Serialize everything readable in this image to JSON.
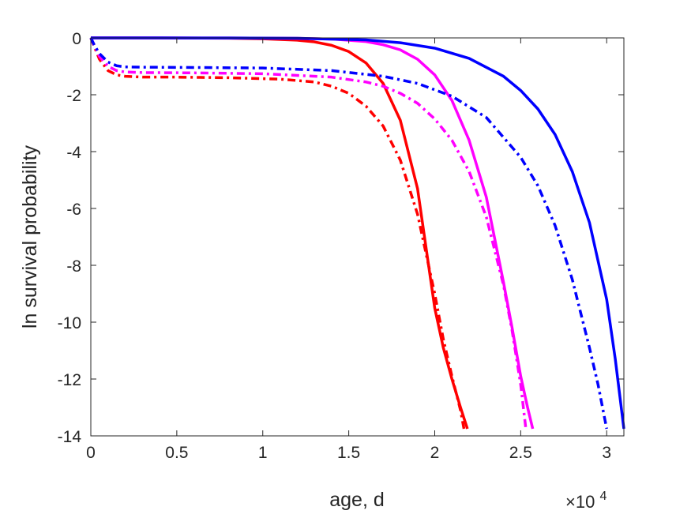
{
  "chart_data": {
    "type": "line",
    "title": "",
    "xlabel": "age, d",
    "ylabel": "ln survival probability",
    "x_exponent_label": {
      "prefix": "×10",
      "power": "4"
    },
    "xlim": [
      0,
      31000
    ],
    "ylim": [
      -14,
      0
    ],
    "xticks": [
      0,
      5000,
      10000,
      15000,
      20000,
      25000,
      30000
    ],
    "xtick_labels": [
      "0",
      "0.5",
      "1",
      "1.5",
      "2",
      "2.5",
      "3"
    ],
    "yticks": [
      0,
      -2,
      -4,
      -6,
      -8,
      -10,
      -12,
      -14
    ],
    "ytick_labels": [
      "0",
      "-2",
      "-4",
      "-6",
      "-8",
      "-10",
      "-12",
      "-14"
    ],
    "grid": false,
    "legend": "none",
    "series": [
      {
        "color": "#ff0000",
        "style": "solid",
        "x": [
          0,
          2000,
          4000,
          6000,
          8000,
          10000,
          12000,
          13000,
          14000,
          15000,
          16000,
          17000,
          18000,
          19000,
          20000,
          20500,
          21000,
          21500,
          21900
        ],
        "y": [
          0,
          -0.001,
          -0.003,
          -0.006,
          -0.012,
          -0.03,
          -0.08,
          -0.14,
          -0.26,
          -0.48,
          -0.88,
          -1.6,
          -2.9,
          -5.3,
          -9.5,
          -10.9,
          -12.0,
          -13.0,
          -13.75
        ]
      },
      {
        "color": "#ff00ff",
        "style": "solid",
        "x": [
          0,
          4000,
          8000,
          12000,
          14000,
          16000,
          17000,
          18000,
          19000,
          20000,
          21000,
          22000,
          23000,
          24000,
          24500,
          25000,
          25400,
          25700
        ],
        "y": [
          0,
          -0.001,
          -0.004,
          -0.015,
          -0.04,
          -0.13,
          -0.24,
          -0.42,
          -0.75,
          -1.3,
          -2.2,
          -3.6,
          -5.6,
          -8.6,
          -10.2,
          -11.9,
          -13.0,
          -13.75
        ]
      },
      {
        "color": "#0000ff",
        "style": "solid",
        "x": [
          0,
          4000,
          8000,
          12000,
          16000,
          18000,
          20000,
          22000,
          24000,
          25000,
          26000,
          27000,
          28000,
          29000,
          30000,
          30500,
          31000
        ],
        "y": [
          0,
          -0.001,
          -0.004,
          -0.015,
          -0.07,
          -0.17,
          -0.36,
          -0.72,
          -1.35,
          -1.85,
          -2.5,
          -3.4,
          -4.7,
          -6.5,
          -9.2,
          -11.3,
          -13.75
        ]
      },
      {
        "color": "#ff0000",
        "style": "dashdot",
        "x": [
          0,
          200,
          500,
          1000,
          1500,
          2000,
          3000,
          5000,
          8000,
          11000,
          13000,
          14000,
          15000,
          16000,
          17000,
          18000,
          19000,
          20000,
          20500,
          21000,
          21500,
          21700
        ],
        "y": [
          0,
          -0.3,
          -0.75,
          -1.15,
          -1.3,
          -1.35,
          -1.38,
          -1.38,
          -1.4,
          -1.45,
          -1.55,
          -1.7,
          -1.95,
          -2.4,
          -3.1,
          -4.3,
          -6.2,
          -9.0,
          -10.6,
          -11.9,
          -13.1,
          -13.75
        ]
      },
      {
        "color": "#ff00ff",
        "style": "dashdot",
        "x": [
          0,
          200,
          500,
          1000,
          1500,
          2000,
          3000,
          6000,
          10000,
          14000,
          16000,
          17000,
          18000,
          19000,
          20000,
          21000,
          22000,
          23000,
          24000,
          24500,
          25000,
          25300
        ],
        "y": [
          0,
          -0.25,
          -0.65,
          -1.0,
          -1.15,
          -1.2,
          -1.22,
          -1.23,
          -1.26,
          -1.38,
          -1.55,
          -1.7,
          -1.95,
          -2.3,
          -2.85,
          -3.6,
          -4.7,
          -6.3,
          -8.7,
          -10.3,
          -12.2,
          -13.75
        ]
      },
      {
        "color": "#0000ff",
        "style": "dashdot",
        "x": [
          0,
          200,
          500,
          1000,
          1500,
          2000,
          3000,
          6000,
          10000,
          14000,
          17000,
          19000,
          21000,
          23000,
          25000,
          26000,
          27000,
          28000,
          29000,
          29500,
          30000
        ],
        "y": [
          0,
          -0.25,
          -0.55,
          -0.85,
          -0.98,
          -1.02,
          -1.03,
          -1.04,
          -1.06,
          -1.15,
          -1.35,
          -1.6,
          -2.05,
          -2.8,
          -4.2,
          -5.2,
          -6.6,
          -8.5,
          -10.9,
          -12.2,
          -13.75
        ]
      }
    ]
  }
}
